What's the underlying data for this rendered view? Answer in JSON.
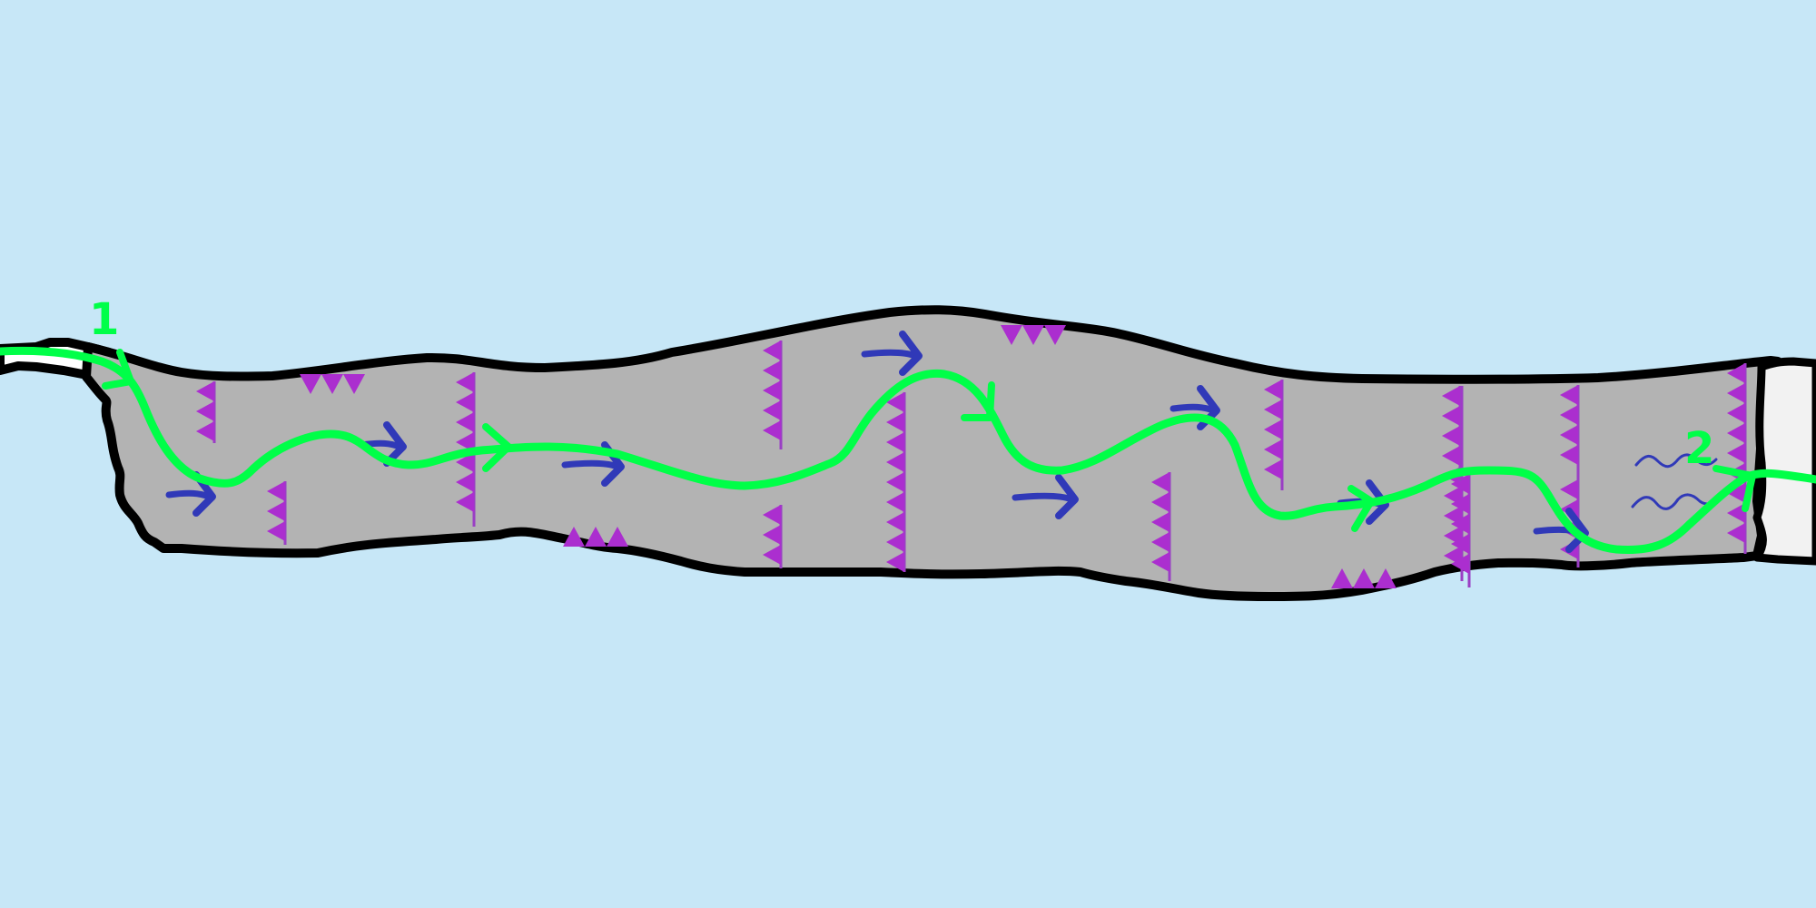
{
  "level": {
    "start_marker": "1",
    "end_marker": "2"
  },
  "colors": {
    "background": "#c7e7f7",
    "corridor_fill": "#b3b3b3",
    "corridor_outline": "#000000",
    "exit_fill": "#f2f2f2",
    "spikes": "#ab2ecf",
    "current_arrows": "#3039b8",
    "route": "#00ff48",
    "wind": "#3039b8"
  },
  "legend_icons": {
    "spikes": "spike-icon",
    "current": "current-arrow-icon",
    "route": "route-path-icon",
    "exit": "exit-gate-icon",
    "wind": "wind-icon"
  }
}
